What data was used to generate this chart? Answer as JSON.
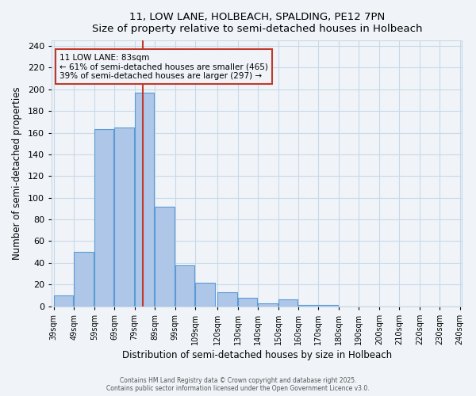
{
  "title": "11, LOW LANE, HOLBEACH, SPALDING, PE12 7PN",
  "subtitle": "Size of property relative to semi-detached houses in Holbeach",
  "xlabel": "Distribution of semi-detached houses by size in Holbeach",
  "ylabel": "Number of semi-detached properties",
  "bins": [
    39,
    49,
    59,
    69,
    79,
    89,
    99,
    109,
    120,
    130,
    140,
    150,
    160,
    170,
    180,
    190,
    200,
    210,
    220,
    230,
    240
  ],
  "counts": [
    10,
    50,
    163,
    165,
    197,
    92,
    38,
    22,
    13,
    8,
    3,
    6,
    1,
    1,
    0,
    0,
    0,
    0,
    0,
    0
  ],
  "bar_color": "#aec6e8",
  "bar_edge_color": "#5b9bd5",
  "marker_value": 83,
  "marker_label": "11 LOW LANE: 83sqm",
  "marker_line_color": "#c0392b",
  "annotation_line1": "← 61% of semi-detached houses are smaller (465)",
  "annotation_line2": "39% of semi-detached houses are larger (297) →",
  "annotation_box_color": "#c0392b",
  "ylim": [
    0,
    245
  ],
  "yticks": [
    0,
    20,
    40,
    60,
    80,
    100,
    120,
    140,
    160,
    180,
    200,
    220,
    240
  ],
  "footer_line1": "Contains HM Land Registry data © Crown copyright and database right 2025.",
  "footer_line2": "Contains public sector information licensed under the Open Government Licence v3.0.",
  "bg_color": "#f0f4f8",
  "grid_color": "#c8d8e8"
}
